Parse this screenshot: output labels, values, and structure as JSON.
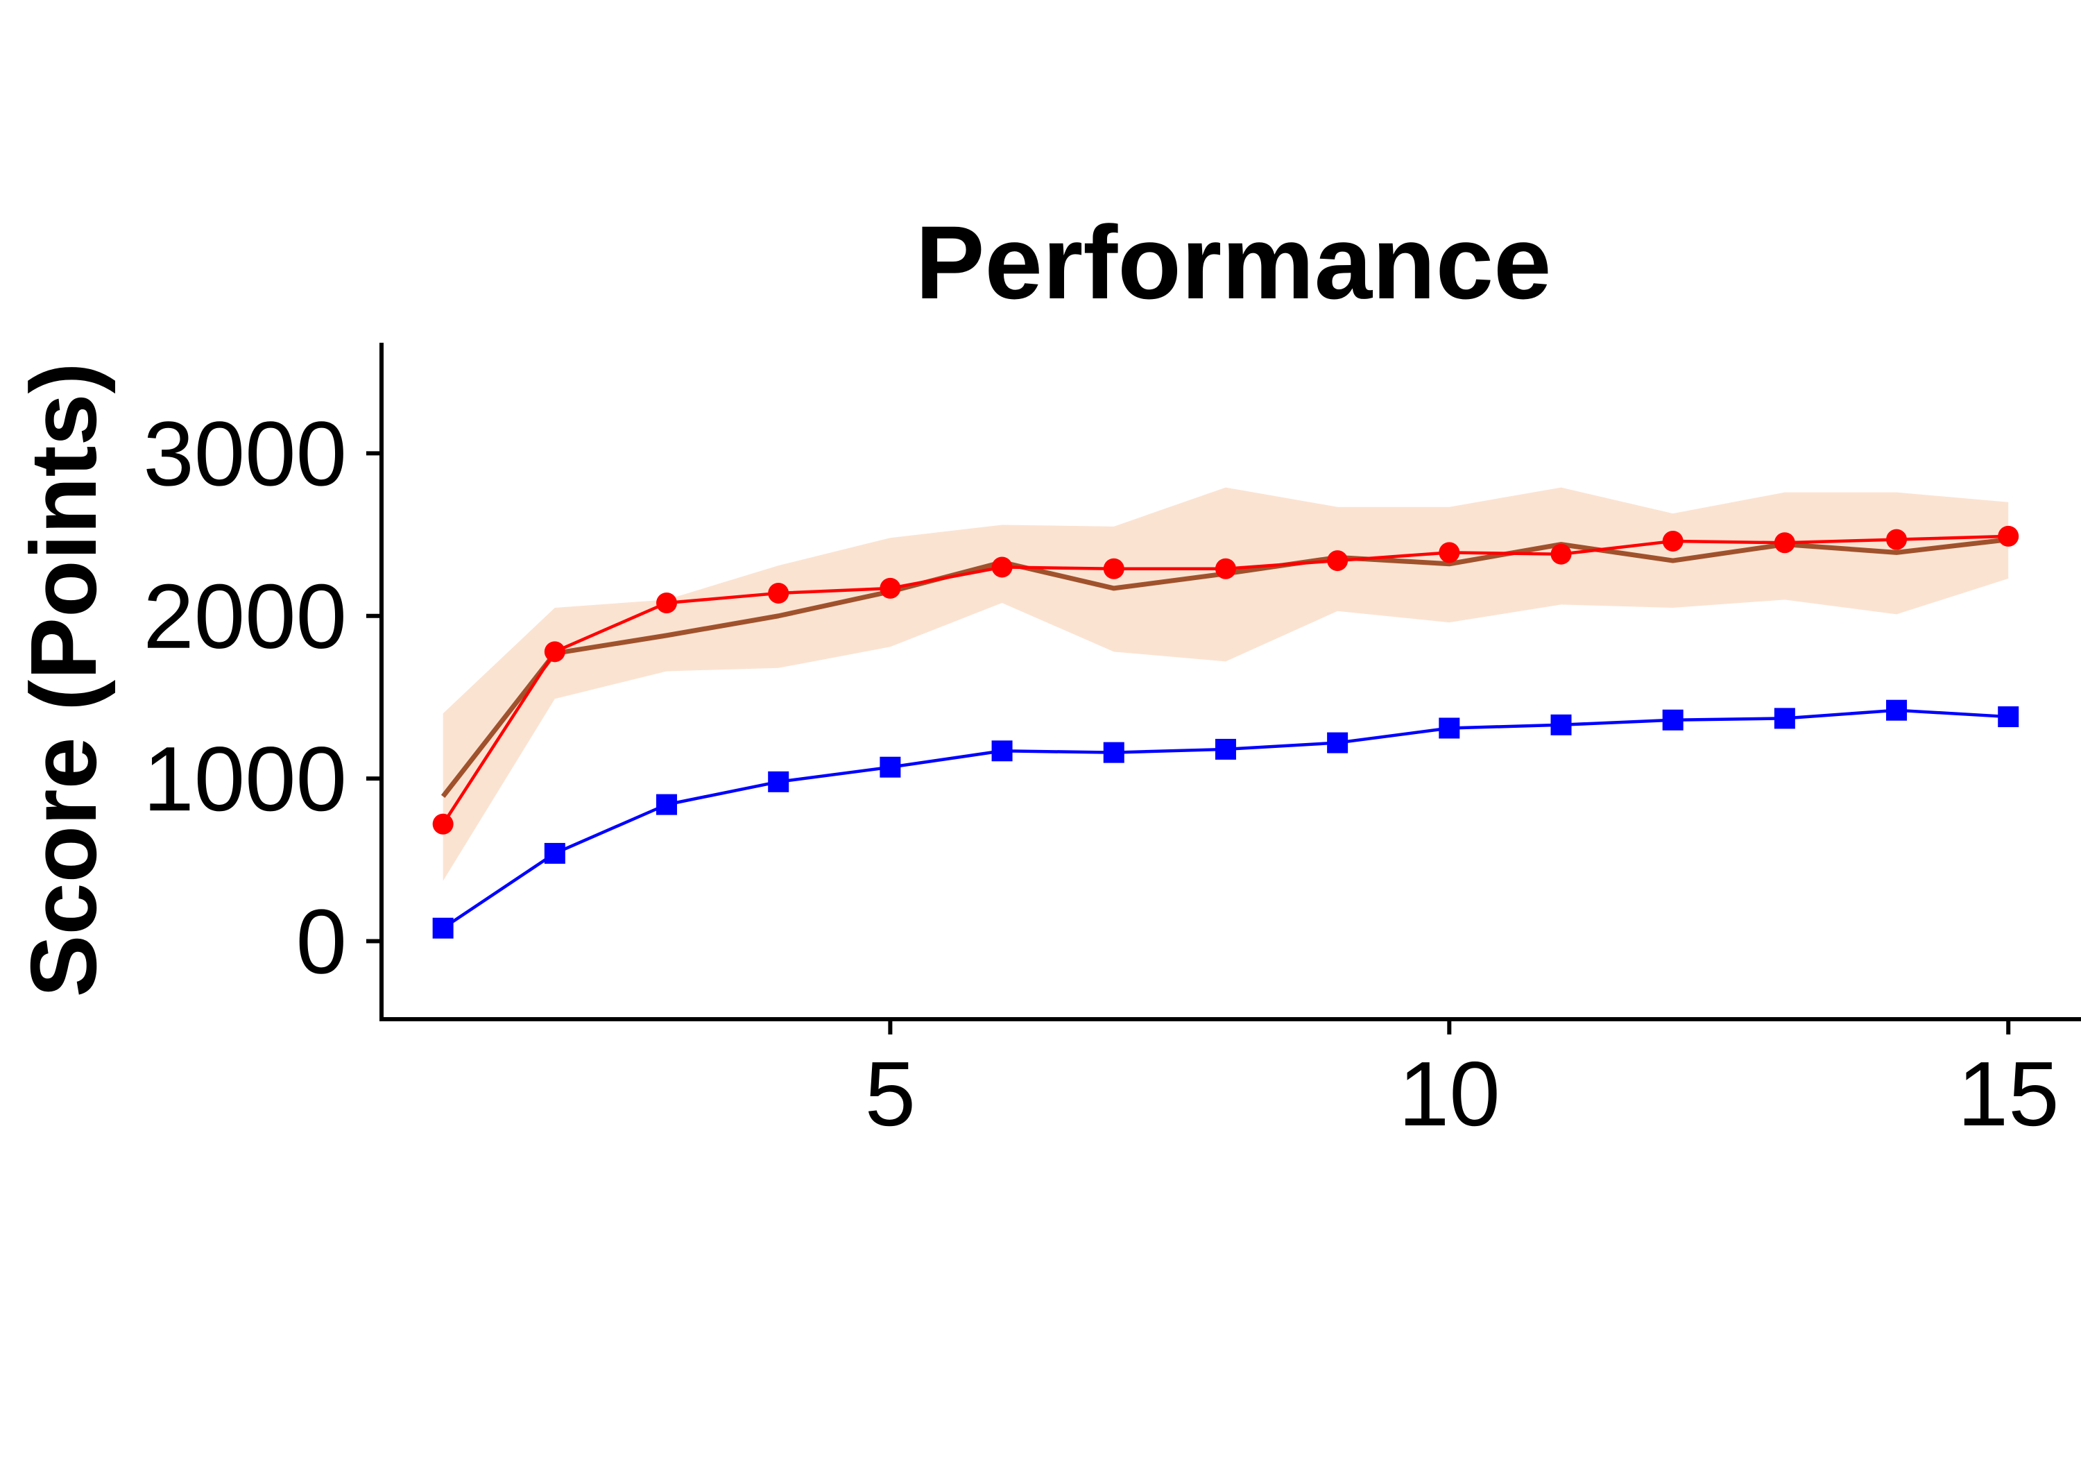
{
  "chart_data": {
    "type": "line",
    "title": "Performance",
    "xlabel": "",
    "ylabel": "Score (Points)",
    "xlim": [
      0.45,
      15.65
    ],
    "ylim": [
      -480,
      3680
    ],
    "xticks": [
      5,
      10,
      15
    ],
    "yticks": [
      0,
      1000,
      2000,
      3000
    ],
    "grid": false,
    "legend": "none",
    "x": [
      1,
      2,
      3,
      4,
      5,
      6,
      7,
      8,
      9,
      10,
      11,
      12,
      13,
      14,
      15
    ],
    "band": {
      "color": "#fbe3d2",
      "lower": [
        370,
        1490,
        1660,
        1680,
        1810,
        2080,
        1780,
        1720,
        2030,
        1960,
        2070,
        2050,
        2100,
        2010,
        2230
      ],
      "upper": [
        1400,
        2050,
        2100,
        2310,
        2480,
        2560,
        2550,
        2790,
        2670,
        2670,
        2790,
        2630,
        2760,
        2760,
        2700
      ]
    },
    "series": [
      {
        "color": "#a0522d",
        "marker": "none",
        "values": [
          890,
          1770,
          1880,
          2000,
          2150,
          2330,
          2170,
          2260,
          2360,
          2320,
          2440,
          2340,
          2440,
          2390,
          2470
        ]
      },
      {
        "color": "#ff0000",
        "marker": "circle",
        "values": [
          720,
          1780,
          2080,
          2140,
          2170,
          2300,
          2290,
          2290,
          2340,
          2390,
          2380,
          2460,
          2450,
          2470,
          2490
        ]
      },
      {
        "color": "#0000ff",
        "marker": "square",
        "values": [
          80,
          540,
          840,
          980,
          1070,
          1170,
          1160,
          1180,
          1220,
          1310,
          1330,
          1360,
          1370,
          1420,
          1380
        ]
      }
    ]
  }
}
